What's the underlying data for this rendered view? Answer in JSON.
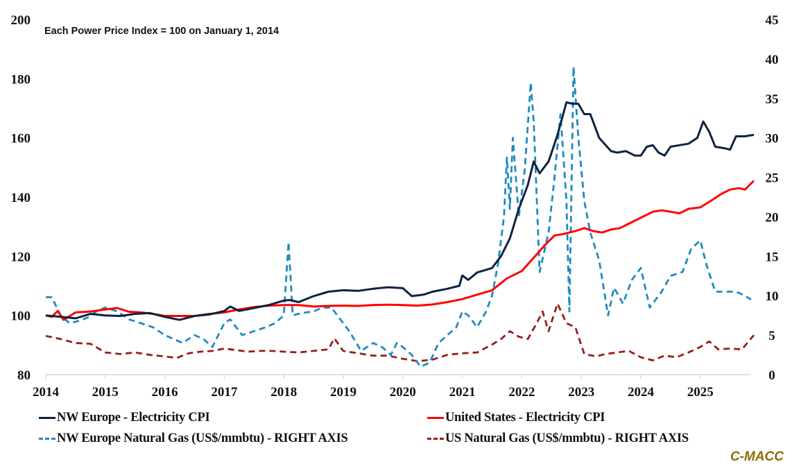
{
  "chart_data": {
    "type": "line",
    "title": "",
    "subtitle": "Each Power Price Index = 100 on January 1, 2014",
    "xlabel": "",
    "ylabel": "",
    "y2label": "",
    "xlim": [
      2014,
      2025.9
    ],
    "ylim": [
      80,
      200
    ],
    "y2lim": [
      0,
      45
    ],
    "xticks": [
      "2014",
      "2015",
      "2016",
      "2017",
      "2018",
      "2019",
      "2020",
      "2021",
      "2022",
      "2023",
      "2024",
      "2025"
    ],
    "yticks": [
      "80",
      "100",
      "120",
      "140",
      "160",
      "180",
      "200"
    ],
    "y2ticks": [
      "0",
      "5",
      "10",
      "15",
      "20",
      "25",
      "30",
      "35",
      "40",
      "45"
    ],
    "grid": false,
    "legend_position": "bottom",
    "series": [
      {
        "name": "NW Europe - Electricity CPI",
        "axis": "left",
        "style": "solid",
        "color": "#0d2240",
        "x": [
          2014,
          2014.25,
          2014.5,
          2014.75,
          2015,
          2015.25,
          2015.5,
          2015.75,
          2016,
          2016.25,
          2016.5,
          2016.75,
          2017,
          2017.1,
          2017.25,
          2017.5,
          2017.75,
          2018,
          2018.1,
          2018.25,
          2018.5,
          2018.75,
          2019,
          2019.25,
          2019.5,
          2019.75,
          2020,
          2020.15,
          2020.35,
          2020.5,
          2020.75,
          2020.95,
          2021.0,
          2021.1,
          2021.25,
          2021.5,
          2021.65,
          2021.8,
          2021.95,
          2022.1,
          2022.2,
          2022.3,
          2022.45,
          2022.6,
          2022.75,
          2022.85,
          2022.95,
          2023.05,
          2023.15,
          2023.3,
          2023.5,
          2023.6,
          2023.75,
          2023.9,
          2024.0,
          2024.1,
          2024.2,
          2024.3,
          2024.4,
          2024.5,
          2024.65,
          2024.8,
          2024.95,
          2025.05,
          2025.15,
          2025.25,
          2025.4,
          2025.5,
          2025.6,
          2025.75,
          2025.9
        ],
        "values": [
          100,
          99.5,
          99,
          100.5,
          100,
          99.8,
          100.5,
          100.8,
          99.5,
          98.5,
          99.8,
          100.3,
          101.5,
          103,
          101.5,
          102.5,
          103.5,
          105,
          105.2,
          104.5,
          106.5,
          108,
          108.5,
          108.3,
          109,
          109.5,
          109.2,
          106.5,
          107,
          108,
          109,
          110,
          113.5,
          112,
          114.5,
          116,
          120,
          126,
          136,
          144,
          152,
          148,
          152,
          161,
          172,
          171.5,
          171.5,
          168,
          168,
          160,
          155.5,
          155,
          155.5,
          154,
          154,
          157,
          157.5,
          155,
          154,
          157,
          157.5,
          158,
          160,
          165.5,
          162,
          157,
          156.5,
          156,
          160.5,
          160.5,
          161
        ]
      },
      {
        "name": "United States - Electricity CPI",
        "axis": "left",
        "style": "solid",
        "color": "#ff0000",
        "x": [
          2014,
          2014.1,
          2014.2,
          2014.3,
          2014.5,
          2014.75,
          2015,
          2015.2,
          2015.4,
          2015.6,
          2015.8,
          2016,
          2016.25,
          2016.5,
          2016.75,
          2017,
          2017.25,
          2017.5,
          2017.75,
          2018,
          2018.25,
          2018.5,
          2018.75,
          2019,
          2019.25,
          2019.5,
          2019.75,
          2020,
          2020.25,
          2020.5,
          2020.75,
          2021,
          2021.25,
          2021.5,
          2021.75,
          2022,
          2022.2,
          2022.4,
          2022.55,
          2022.7,
          2022.9,
          2023.05,
          2023.2,
          2023.35,
          2023.5,
          2023.65,
          2023.8,
          2024.0,
          2024.2,
          2024.35,
          2024.5,
          2024.65,
          2024.8,
          2025.0,
          2025.2,
          2025.35,
          2025.5,
          2025.65,
          2025.75,
          2025.9
        ],
        "values": [
          100,
          99.5,
          101.5,
          98.5,
          101,
          101.3,
          102,
          102.5,
          101.2,
          101,
          100.5,
          99.8,
          99.8,
          99.8,
          100.5,
          101,
          102,
          102.8,
          103.3,
          103.5,
          103.5,
          103,
          103.2,
          103.3,
          103.2,
          103.5,
          103.6,
          103.5,
          103.3,
          103.7,
          104.5,
          105.5,
          107,
          108.5,
          112.5,
          115,
          119.5,
          124,
          127,
          127.5,
          128.5,
          129.5,
          128.5,
          128,
          129,
          129.5,
          131,
          133,
          135,
          135.5,
          135,
          134.5,
          136,
          136.5,
          139,
          141,
          142.5,
          143,
          142.5,
          145.5
        ]
      },
      {
        "name": "NW Europe Natural Gas (US$/mmbtu) - RIGHT AXIS",
        "axis": "right",
        "style": "dashed",
        "color": "#1f8ac0",
        "x": [
          2014,
          2014.1,
          2014.25,
          2014.4,
          2014.55,
          2014.7,
          2014.85,
          2015,
          2015.2,
          2015.4,
          2015.6,
          2015.8,
          2016,
          2016.15,
          2016.3,
          2016.5,
          2016.65,
          2016.8,
          2017,
          2017.1,
          2017.3,
          2017.5,
          2017.7,
          2017.85,
          2018,
          2018.08,
          2018.15,
          2018.3,
          2018.5,
          2018.65,
          2018.8,
          2018.9,
          2019.1,
          2019.3,
          2019.5,
          2019.65,
          2019.8,
          2019.9,
          2020.0,
          2020.15,
          2020.3,
          2020.45,
          2020.6,
          2020.75,
          2020.9,
          2021.0,
          2021.1,
          2021.25,
          2021.4,
          2021.5,
          2021.6,
          2021.7,
          2021.75,
          2021.8,
          2021.85,
          2021.95,
          2022.05,
          2022.15,
          2022.2,
          2022.3,
          2022.45,
          2022.55,
          2022.65,
          2022.75,
          2022.8,
          2022.87,
          2022.95,
          2023.05,
          2023.15,
          2023.3,
          2023.45,
          2023.55,
          2023.7,
          2023.85,
          2024.0,
          2024.15,
          2024.35,
          2024.5,
          2024.7,
          2024.85,
          2025.0,
          2025.1,
          2025.25,
          2025.4,
          2025.6,
          2025.75,
          2025.85
        ],
        "values": [
          9.8,
          9.8,
          7.5,
          6.5,
          6.8,
          7.2,
          8,
          8.5,
          8,
          7,
          6.5,
          6,
          5,
          4.5,
          4,
          5,
          4.5,
          3.5,
          6.5,
          7,
          5,
          5.5,
          6,
          6.5,
          7.5,
          16.8,
          7.5,
          7.8,
          8,
          8.5,
          8.5,
          7.5,
          5.5,
          3,
          4,
          3.5,
          2.5,
          4,
          3.5,
          2.5,
          1,
          1.5,
          4,
          5,
          6,
          8,
          7.5,
          6,
          8,
          10,
          14,
          20,
          27.5,
          21,
          30,
          20,
          26,
          37,
          32,
          13,
          18,
          25,
          33,
          22,
          8,
          39,
          30,
          22,
          18,
          14.5,
          7.5,
          11,
          9,
          12,
          13.5,
          8.5,
          10.5,
          12.5,
          13,
          16,
          17,
          14,
          10.5,
          10.5,
          10.5,
          10,
          9.5
        ]
      },
      {
        "name": "US Natural Gas (US$/mmbtu) - RIGHT AXIS",
        "axis": "right",
        "style": "dashed",
        "color": "#9b1b1b",
        "x": [
          2014,
          2014.25,
          2014.5,
          2014.75,
          2015,
          2015.25,
          2015.5,
          2015.75,
          2016,
          2016.2,
          2016.4,
          2016.6,
          2016.8,
          2017,
          2017.2,
          2017.4,
          2017.6,
          2017.8,
          2018,
          2018.25,
          2018.5,
          2018.75,
          2018.85,
          2019,
          2019.25,
          2019.5,
          2019.75,
          2020,
          2020.25,
          2020.5,
          2020.75,
          2021,
          2021.25,
          2021.5,
          2021.65,
          2021.8,
          2021.95,
          2022.1,
          2022.25,
          2022.35,
          2022.45,
          2022.6,
          2022.75,
          2022.9,
          2023.05,
          2023.25,
          2023.4,
          2023.6,
          2023.8,
          2024.0,
          2024.2,
          2024.4,
          2024.6,
          2024.8,
          2025.0,
          2025.15,
          2025.3,
          2025.5,
          2025.7,
          2025.9
        ],
        "values": [
          4.9,
          4.5,
          4,
          3.9,
          2.8,
          2.6,
          2.8,
          2.5,
          2.3,
          2.1,
          2.7,
          2.9,
          3.0,
          3.3,
          3.1,
          2.9,
          3.0,
          3.0,
          2.9,
          2.8,
          3.0,
          3.2,
          4.6,
          3.0,
          2.7,
          2.4,
          2.4,
          2.0,
          1.7,
          1.9,
          2.5,
          2.7,
          2.8,
          3.8,
          4.5,
          5.5,
          4.8,
          4.5,
          6.5,
          8,
          5.5,
          9,
          6.5,
          6,
          2.6,
          2.3,
          2.6,
          2.8,
          3.0,
          2.2,
          1.8,
          2.4,
          2.2,
          2.8,
          3.5,
          4.2,
          3.2,
          3.3,
          3.2,
          5.0
        ]
      }
    ]
  },
  "legend": {
    "items": [
      {
        "label": "NW Europe - Electricity CPI",
        "color": "#0d2240",
        "style": "solid"
      },
      {
        "label": "United States - Electricity CPI",
        "color": "#ff0000",
        "style": "solid"
      },
      {
        "label": "NW Europe Natural Gas (US$/mmbtu) - RIGHT AXIS",
        "color": "#1f8ac0",
        "style": "dashed"
      },
      {
        "label": "US Natural Gas (US$/mmbtu) - RIGHT AXIS",
        "color": "#9b1b1b",
        "style": "dashed"
      }
    ]
  },
  "brand": "C-MACC"
}
